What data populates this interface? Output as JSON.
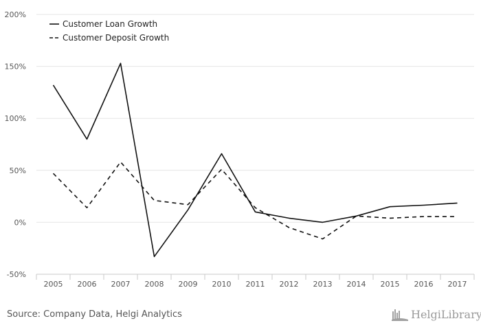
{
  "chart_data": {
    "type": "line",
    "title": "",
    "xlabel": "",
    "ylabel": "",
    "categories": [
      "2005",
      "2006",
      "2007",
      "2008",
      "2009",
      "2010",
      "2011",
      "2012",
      "2013",
      "2014",
      "2015",
      "2016",
      "2017"
    ],
    "ylim": [
      -50,
      200
    ],
    "yticks": [
      -50,
      0,
      50,
      100,
      150,
      200
    ],
    "ytick_labels": [
      "-50%",
      "0%",
      "50%",
      "100%",
      "150%",
      "200%"
    ],
    "legend_position": "top-left",
    "series": [
      {
        "name": "Customer Loan Growth",
        "style": "solid",
        "values": [
          132,
          80,
          153,
          -33,
          12,
          66,
          10,
          4,
          0,
          6,
          15,
          16.5,
          18.5
        ]
      },
      {
        "name": "Customer Deposit Growth",
        "style": "dashed",
        "values": [
          47,
          14,
          58,
          21,
          17,
          51,
          14,
          -5,
          -16,
          6,
          4,
          5.5,
          5.5
        ]
      }
    ],
    "colors": {
      "line": "#111111",
      "grid": "#e6e6e6",
      "axis": "#c8c8c8"
    }
  },
  "footer": {
    "source": "Source: Company Data, Helgi Analytics",
    "logo_text": "HelgiLibrary."
  }
}
